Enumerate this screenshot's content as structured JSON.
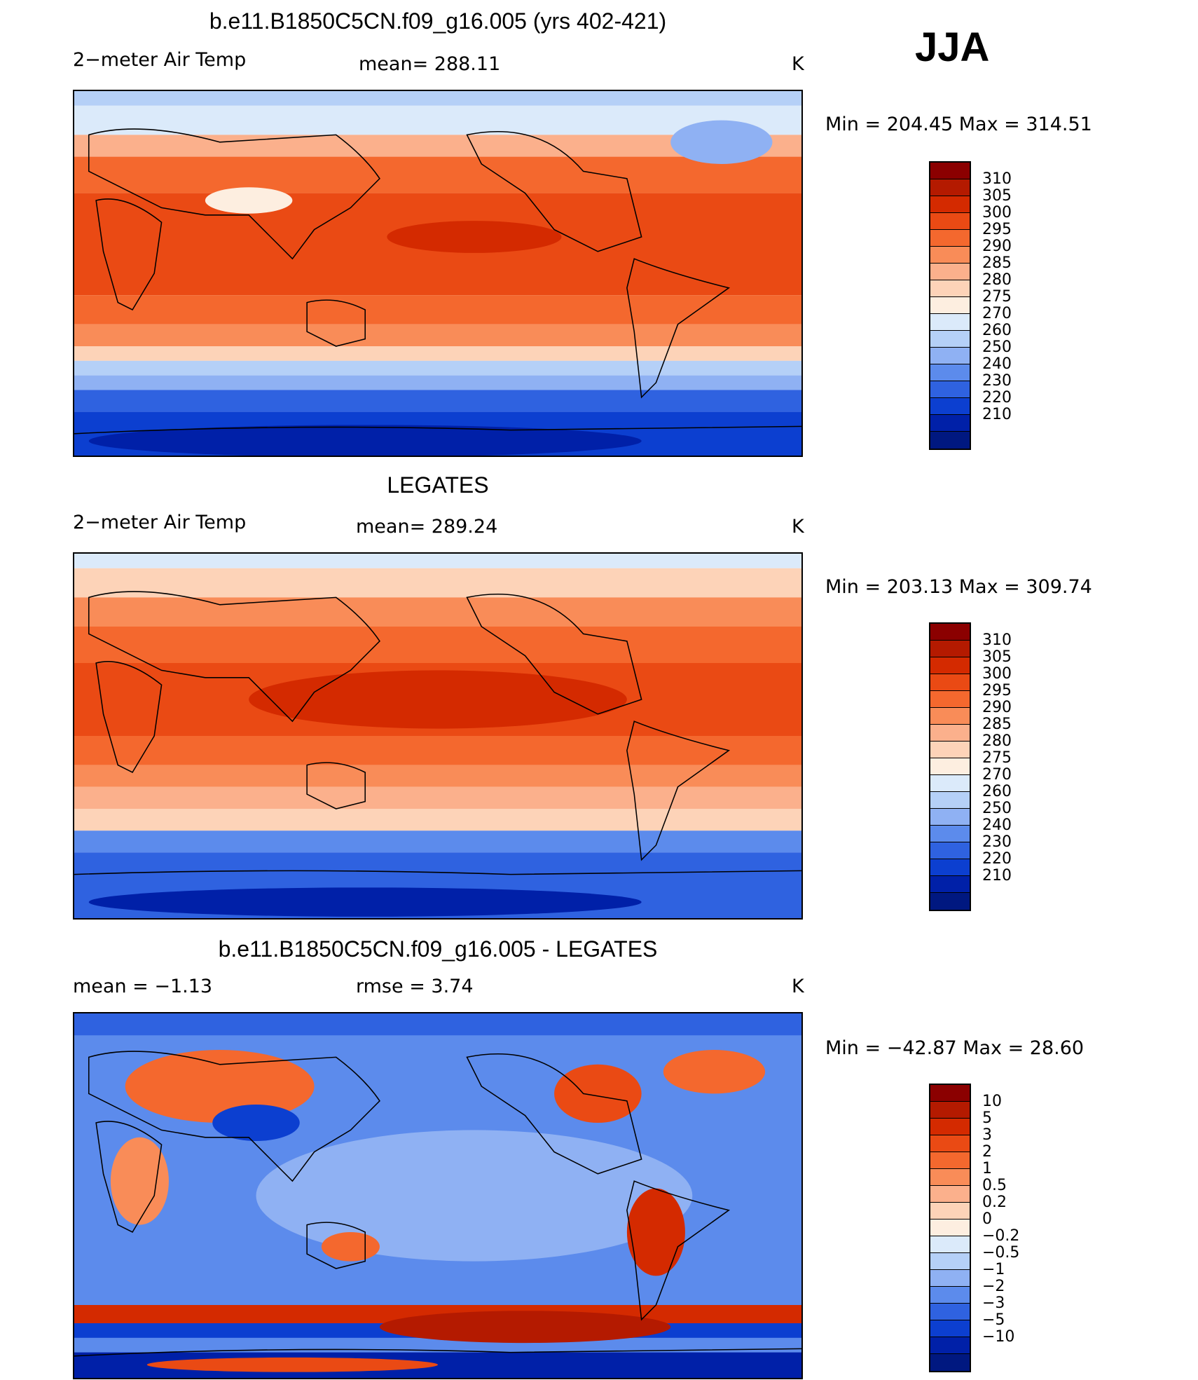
{
  "season": "JJA",
  "panels": [
    {
      "title": "b.e11.B1850C5CN.f09_g16.005 (yrs 402-421)",
      "left": "2−meter Air Temp",
      "center": "mean=  288.11",
      "right": "K",
      "minmax": "Min  =  204.45  Max  =  314.51",
      "scale": "abs"
    },
    {
      "title": "LEGATES",
      "left": "2−meter Air Temp",
      "center": "mean=  289.24",
      "right": "K",
      "minmax": "Min  =  203.13  Max  =  309.74",
      "scale": "abs"
    },
    {
      "title": "b.e11.B1850C5CN.f09_g16.005 - LEGATES",
      "left": "mean  =     −1.13",
      "center": "rmse  =      3.74",
      "right": "K",
      "minmax": "Min  =  −42.87  Max  =     28.60",
      "scale": "diff"
    }
  ],
  "colorbars": {
    "abs": {
      "labels": [
        "310",
        "305",
        "300",
        "295",
        "290",
        "285",
        "280",
        "275",
        "270",
        "260",
        "250",
        "240",
        "230",
        "220",
        "210"
      ],
      "colors": [
        "#8b0000",
        "#b41a00",
        "#d42a00",
        "#ea4a14",
        "#f4682e",
        "#f98c58",
        "#fbb08c",
        "#fdd3b8",
        "#fdeee0",
        "#dbeafa",
        "#b5d0f7",
        "#8fb1f3",
        "#5c8bec",
        "#2f62e0",
        "#0c3fd0",
        "#0020a8",
        "#001880"
      ]
    },
    "diff": {
      "labels": [
        "10",
        "5",
        "3",
        "2",
        "1",
        "0.5",
        "0.2",
        "0",
        "−0.2",
        "−0.5",
        "−1",
        "−2",
        "−3",
        "−5",
        "−10"
      ],
      "colors": [
        "#8b0000",
        "#b41a00",
        "#d42a00",
        "#ea4a14",
        "#f4682e",
        "#f98c58",
        "#fbb08c",
        "#fdd3b8",
        "#fdeee0",
        "#dbeafa",
        "#b5d0f7",
        "#8fb1f3",
        "#5c8bec",
        "#2f62e0",
        "#0c3fd0",
        "#0020a8",
        "#001880"
      ]
    }
  }
}
